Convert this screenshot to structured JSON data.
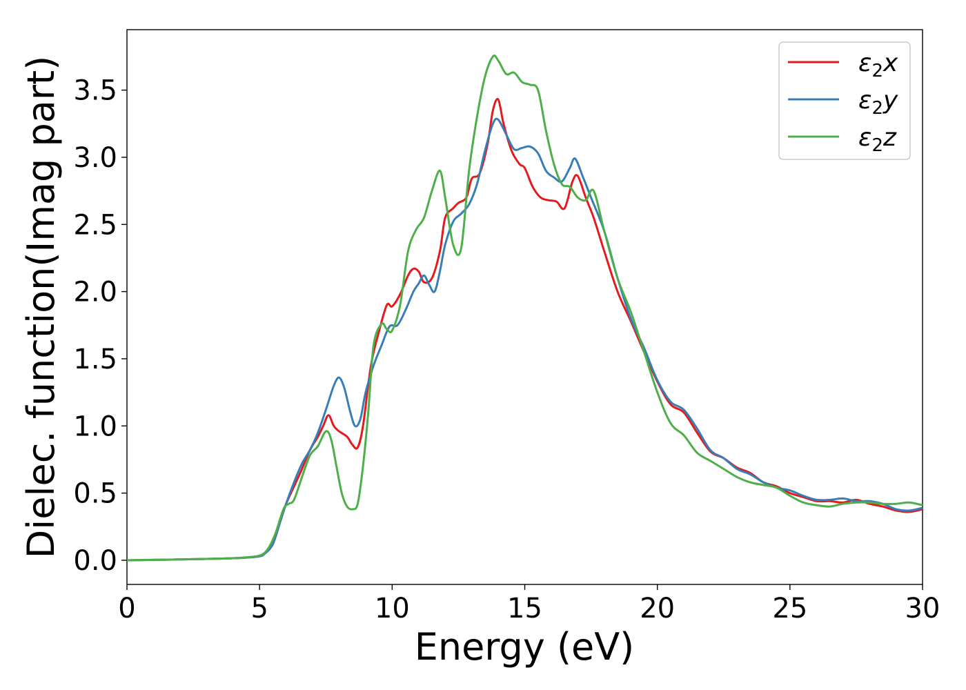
{
  "chart_data": {
    "type": "line",
    "xlabel": "Energy (eV)",
    "ylabel": "Dielec. function(Imag part)",
    "xlim": [
      0,
      30
    ],
    "ylim": [
      -0.18,
      3.95
    ],
    "xticks": [
      "0",
      "5",
      "10",
      "15",
      "20",
      "25",
      "30"
    ],
    "yticks": [
      "0.0",
      "0.5",
      "1.0",
      "1.5",
      "2.0",
      "2.5",
      "3.0",
      "3.5"
    ],
    "grid": false,
    "legend_position": "top-right",
    "series": [
      {
        "name": "ε₂x",
        "base": "ε",
        "sub": "2",
        "axis": "x",
        "color": "#e41a1c",
        "x": [
          0,
          1,
          2,
          3,
          4,
          4.5,
          5,
          5.2,
          5.5,
          5.8,
          6,
          6.3,
          6.6,
          6.9,
          7.2,
          7.4,
          7.6,
          7.8,
          8,
          8.3,
          8.5,
          8.7,
          8.9,
          9.2,
          9.5,
          9.8,
          10,
          10.3,
          10.6,
          10.8,
          11,
          11.2,
          11.5,
          11.8,
          12,
          12.3,
          12.5,
          12.8,
          13,
          13.3,
          13.6,
          13.8,
          14,
          14.2,
          14.5,
          14.8,
          15,
          15.3,
          15.6,
          15.9,
          16.2,
          16.5,
          16.8,
          17,
          17.3,
          17.6,
          18,
          18.5,
          19,
          19.5,
          20,
          20.5,
          21,
          21.5,
          22,
          22.5,
          23,
          23.5,
          24,
          24.5,
          25,
          25.5,
          26,
          26.5,
          27,
          27.5,
          28,
          28.5,
          29,
          29.5,
          30
        ],
        "y": [
          0,
          0.003,
          0.006,
          0.01,
          0.015,
          0.02,
          0.03,
          0.05,
          0.12,
          0.3,
          0.42,
          0.55,
          0.68,
          0.82,
          0.92,
          1.0,
          1.08,
          1.0,
          0.96,
          0.92,
          0.86,
          0.84,
          1.0,
          1.45,
          1.7,
          1.9,
          1.89,
          1.98,
          2.12,
          2.17,
          2.15,
          2.07,
          2.1,
          2.3,
          2.55,
          2.62,
          2.66,
          2.7,
          2.84,
          2.88,
          3.1,
          3.35,
          3.43,
          3.25,
          3.05,
          2.95,
          2.92,
          2.78,
          2.7,
          2.68,
          2.67,
          2.62,
          2.82,
          2.86,
          2.7,
          2.55,
          2.3,
          2.0,
          1.78,
          1.55,
          1.33,
          1.16,
          1.1,
          0.95,
          0.81,
          0.76,
          0.69,
          0.65,
          0.58,
          0.55,
          0.5,
          0.47,
          0.44,
          0.44,
          0.43,
          0.45,
          0.42,
          0.4,
          0.37,
          0.36,
          0.38
        ]
      },
      {
        "name": "ε₂y",
        "base": "ε",
        "sub": "2",
        "axis": "y",
        "color": "#377eb8",
        "x": [
          0,
          1,
          2,
          3,
          4,
          4.5,
          5,
          5.2,
          5.5,
          5.8,
          6,
          6.3,
          6.6,
          6.9,
          7.2,
          7.5,
          7.8,
          8,
          8.2,
          8.4,
          8.6,
          8.8,
          9,
          9.3,
          9.6,
          9.9,
          10.2,
          10.5,
          10.8,
          11,
          11.2,
          11.4,
          11.6,
          11.8,
          12,
          12.3,
          12.6,
          12.9,
          13.2,
          13.5,
          13.8,
          14,
          14.3,
          14.6,
          14.9,
          15.2,
          15.5,
          15.8,
          16.1,
          16.4,
          16.7,
          16.9,
          17.2,
          17.5,
          18,
          18.5,
          19,
          19.5,
          20,
          20.5,
          21,
          21.5,
          22,
          22.5,
          23,
          23.5,
          24,
          24.5,
          25,
          25.5,
          26,
          26.5,
          27,
          27.5,
          28,
          28.5,
          29,
          29.5,
          30
        ],
        "y": [
          0,
          0.003,
          0.006,
          0.01,
          0.015,
          0.02,
          0.03,
          0.05,
          0.12,
          0.3,
          0.42,
          0.58,
          0.72,
          0.82,
          0.95,
          1.12,
          1.3,
          1.36,
          1.28,
          1.12,
          1.0,
          1.05,
          1.25,
          1.45,
          1.6,
          1.74,
          1.75,
          1.86,
          2.0,
          2.06,
          2.12,
          2.05,
          2.0,
          2.15,
          2.35,
          2.52,
          2.58,
          2.65,
          2.8,
          3.05,
          3.25,
          3.28,
          3.17,
          3.06,
          3.07,
          3.08,
          3.03,
          2.9,
          2.85,
          2.82,
          2.92,
          2.99,
          2.85,
          2.7,
          2.45,
          2.1,
          1.8,
          1.58,
          1.34,
          1.18,
          1.12,
          0.98,
          0.82,
          0.76,
          0.68,
          0.64,
          0.58,
          0.54,
          0.52,
          0.48,
          0.45,
          0.45,
          0.46,
          0.44,
          0.44,
          0.42,
          0.38,
          0.37,
          0.39
        ]
      },
      {
        "name": "ε₂z",
        "base": "ε",
        "sub": "2",
        "axis": "z",
        "color": "#4daf4a",
        "x": [
          0,
          1,
          2,
          3,
          4,
          4.5,
          5,
          5.3,
          5.6,
          5.9,
          6.1,
          6.3,
          6.6,
          6.9,
          7.2,
          7.5,
          7.7,
          7.9,
          8.1,
          8.3,
          8.5,
          8.7,
          8.9,
          9.1,
          9.3,
          9.6,
          9.8,
          10,
          10.3,
          10.6,
          10.9,
          11.2,
          11.5,
          11.8,
          12,
          12.3,
          12.6,
          12.9,
          13.2,
          13.5,
          13.8,
          14,
          14.3,
          14.6,
          14.9,
          15.2,
          15.5,
          15.8,
          16.1,
          16.4,
          16.7,
          17,
          17.3,
          17.6,
          18,
          18.5,
          19,
          19.5,
          20,
          20.5,
          21,
          21.5,
          22,
          22.5,
          23,
          23.5,
          24,
          24.5,
          25,
          25.5,
          26,
          26.5,
          27,
          27.5,
          28,
          28.5,
          29,
          29.5,
          30
        ],
        "y": [
          0,
          0.003,
          0.006,
          0.01,
          0.015,
          0.022,
          0.035,
          0.08,
          0.2,
          0.38,
          0.42,
          0.45,
          0.62,
          0.78,
          0.85,
          0.96,
          0.9,
          0.7,
          0.5,
          0.4,
          0.38,
          0.42,
          0.7,
          1.1,
          1.6,
          1.76,
          1.72,
          1.71,
          1.9,
          2.3,
          2.46,
          2.55,
          2.75,
          2.9,
          2.7,
          2.35,
          2.32,
          2.9,
          3.3,
          3.6,
          3.75,
          3.72,
          3.62,
          3.63,
          3.56,
          3.54,
          3.5,
          3.2,
          2.95,
          2.8,
          2.78,
          2.7,
          2.68,
          2.75,
          2.45,
          2.1,
          1.85,
          1.55,
          1.25,
          1.02,
          0.93,
          0.8,
          0.74,
          0.68,
          0.62,
          0.58,
          0.56,
          0.54,
          0.48,
          0.43,
          0.41,
          0.4,
          0.42,
          0.43,
          0.43,
          0.42,
          0.42,
          0.43,
          0.41
        ]
      }
    ]
  }
}
